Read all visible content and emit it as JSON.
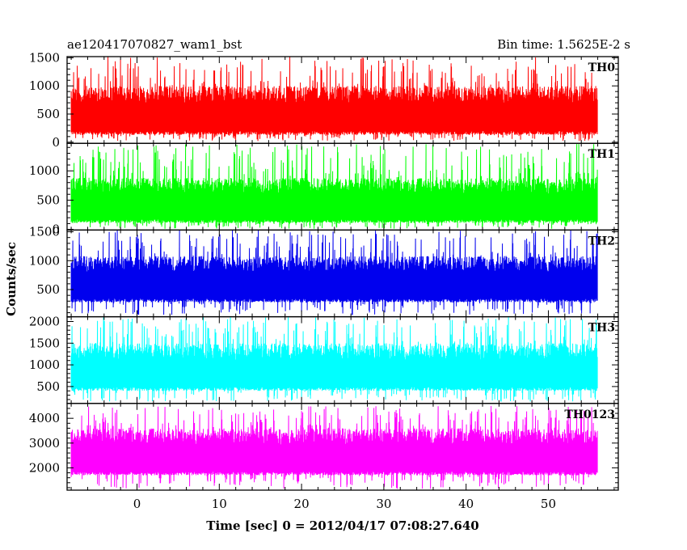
{
  "header": {
    "left_title": "ae120417070827_wam1_bst",
    "right_title": "Bin time: 1.5625E-2 s"
  },
  "chart_data": {
    "type": "line",
    "xlabel": "Time [sec] 0 = 2012/04/17 07:08:27.640",
    "ylabel": "Counts/sec",
    "xlim": [
      -8.5,
      58.5
    ],
    "x_ticks": [
      0,
      10,
      20,
      30,
      40,
      50
    ],
    "x_range_data": [
      -8,
      56
    ],
    "panels": [
      {
        "name": "TH0",
        "color": "#ff0000",
        "ylim": [
          -20,
          1520
        ],
        "y_ticks": [
          0,
          500,
          1000,
          1500
        ],
        "band": {
          "low": 130,
          "high": 1000,
          "spike_min": 20,
          "spike_max": 1520
        }
      },
      {
        "name": "TH1",
        "color": "#00ff00",
        "ylim": [
          -10,
          1470
        ],
        "y_ticks": [
          0,
          500,
          1000
        ],
        "band": {
          "low": 110,
          "high": 880,
          "spike_min": 10,
          "spike_max": 1470
        }
      },
      {
        "name": "TH2",
        "color": "#0000ee",
        "ylim": [
          30,
          1530
        ],
        "y_ticks": [
          500,
          1000,
          1500
        ],
        "band": {
          "low": 280,
          "high": 1080,
          "spike_min": 60,
          "spike_max": 1530
        }
      },
      {
        "name": "TH3",
        "color": "#00ffff",
        "ylim": [
          110,
          2110
        ],
        "y_ticks": [
          500,
          1000,
          1500,
          2000
        ],
        "band": {
          "low": 400,
          "high": 1500,
          "spike_min": 150,
          "spike_max": 2110
        }
      },
      {
        "name": "TH0123",
        "color": "#ff00ff",
        "ylim": [
          1100,
          4600
        ],
        "y_ticks": [
          2000,
          3000,
          4000
        ],
        "band": {
          "low": 1700,
          "high": 3600,
          "spike_min": 1150,
          "spike_max": 4500
        }
      }
    ]
  }
}
